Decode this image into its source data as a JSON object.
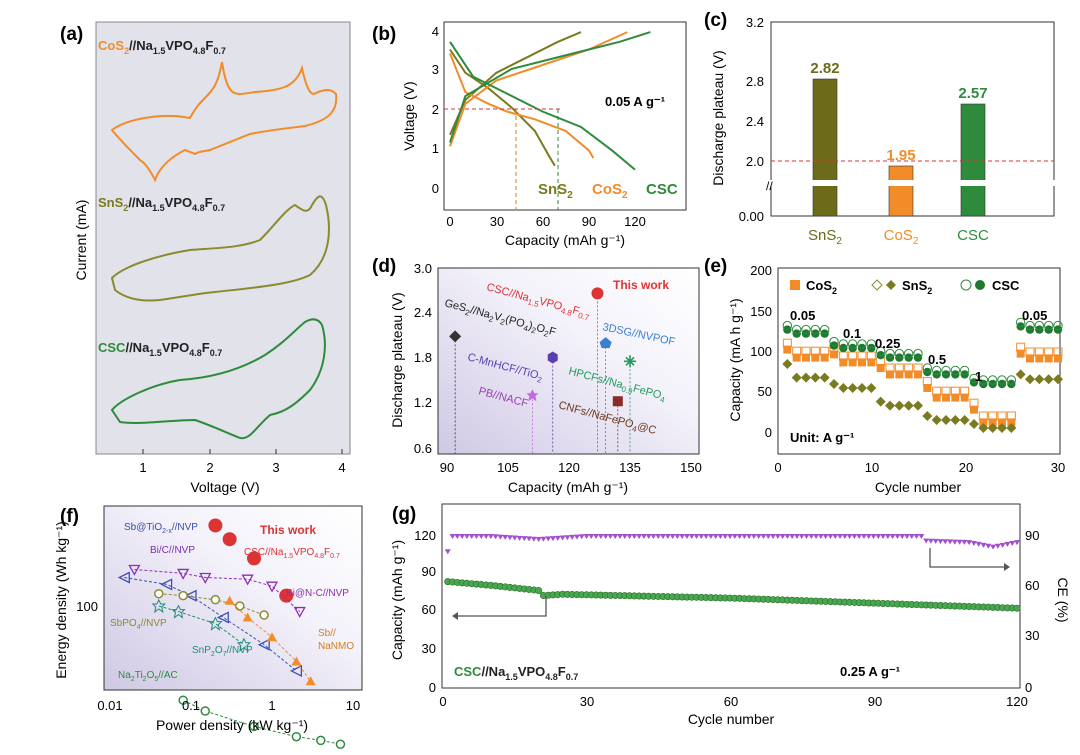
{
  "panels": {
    "a": {
      "label": "(a)",
      "traces": [
        {
          "host": "CoS",
          "host_sub": "2",
          "cathode": "//Na",
          "c1": "1.5",
          "c2": "VPO",
          "c3": "4.8",
          "c4": "F",
          "c5": "0.7",
          "color": "#f28c28"
        },
        {
          "host": "SnS",
          "host_sub": "2",
          "cathode": "//Na",
          "c1": "1.5",
          "c2": "VPO",
          "c3": "4.8",
          "c4": "F",
          "c5": "0.7",
          "color": "#8c8a2e"
        },
        {
          "host": "CSC",
          "host_sub": "",
          "cathode": "//Na",
          "c1": "1.5",
          "c2": "VPO",
          "c3": "4.8",
          "c4": "F",
          "c5": "0.7",
          "color": "#2e8b3c"
        }
      ],
      "xlabel": "Voltage (V)",
      "ylabel": "Current (mA)",
      "xticks": [
        "1",
        "2",
        "3",
        "4"
      ]
    },
    "b": {
      "label": "(b)",
      "xlabel": "Capacity (mAh g⁻¹)",
      "ylabel": "Voltage (V)",
      "xticks": [
        "0",
        "30",
        "60",
        "90",
        "120"
      ],
      "yticks": [
        "0",
        "1",
        "2",
        "3",
        "4"
      ],
      "rate": "0.05 A g⁻¹",
      "series_labels": [
        {
          "t": "SnS",
          "s": "2",
          "color": "#7a7a1e"
        },
        {
          "t": "CoS",
          "s": "2",
          "color": "#f28c28"
        },
        {
          "t": "CSC",
          "s": "",
          "color": "#2e8b3c"
        }
      ]
    },
    "c": {
      "label": "(c)",
      "ylabel": "Discharge plateau (V)",
      "yticks": [
        "0.00",
        "2.0",
        "2.4",
        "2.8",
        "3.2"
      ],
      "bars": [
        {
          "name": "SnS",
          "sub": "2",
          "value": 2.82,
          "vlabel": "2.82",
          "color": "#6b6b1a"
        },
        {
          "name": "CoS",
          "sub": "2",
          "value": 1.95,
          "vlabel": "1.95",
          "color": "#f28c28"
        },
        {
          "name": "CSC",
          "sub": "",
          "value": 2.57,
          "vlabel": "2.57",
          "color": "#2e8b3c"
        }
      ]
    },
    "d": {
      "label": "(d)",
      "xlabel": "Capacity (mAh g⁻¹)",
      "ylabel": "Discharge plateau (V)",
      "xticks": [
        "90",
        "105",
        "120",
        "135",
        "150"
      ],
      "yticks": [
        "0.6",
        "1.2",
        "1.8",
        "2.4",
        "3.0"
      ],
      "this_work": "This work",
      "labels": {
        "csc": "CSC//Na",
        "csc_s1": "1.5",
        "csc_t2": "VPO",
        "csc_s2": "4.8",
        "csc_t3": "F",
        "csc_s3": "0.7",
        "ges": "GeS",
        "ges_s1": "2",
        "ges_t2": "//Na",
        "ges_s2": "2",
        "ges_t3": "V",
        "ges_s3": "2",
        "ges_t4": "(PO",
        "ges_s4": "4",
        "ges_t5": ")",
        "ges_s5": "2",
        "ges_t6": "O",
        "ges_s6": "2",
        "ges_t7": "F",
        "dsg": "3DSG//NVPOF",
        "cmn": "C-MnHCF//TiO",
        "cmn_s": "2",
        "hpc": "HPCFs//Na",
        "hpc_s": "0.9",
        "hpc_t2": "FePO",
        "hpc_s2": "4",
        "pb": "PB//NACF",
        "cnf": "CNFs//NaFePO",
        "cnf_s": "4",
        "cnf_t2": "@C"
      }
    },
    "e": {
      "label": "(e)",
      "xlabel": "Cycle number",
      "ylabel": "Capacity (mA h g⁻¹)",
      "xticks": [
        "0",
        "10",
        "20",
        "30"
      ],
      "yticks": [
        "0",
        "50",
        "100",
        "150",
        "200"
      ],
      "unit": "Unit: A g⁻¹",
      "legend": [
        {
          "t": "CoS",
          "s": "2"
        },
        {
          "t": "SnS",
          "s": "2"
        },
        {
          "t": "CSC",
          "s": ""
        }
      ],
      "rates": [
        "0.05",
        "0.1",
        "0.25",
        "0.5",
        "1",
        "0.05"
      ]
    },
    "f": {
      "label": "(f)",
      "xlabel": "Power density (kW kg⁻¹)",
      "ylabel": "Energy density (Wh kg⁻¹)",
      "xticks": [
        "0.01",
        "0.1",
        "1",
        "10"
      ],
      "ytick": "100",
      "this_work": "This work",
      "labels": {
        "sbti": "Sb@TiO",
        "sbti_s": "2-x",
        "sbti_t2": "//NVP",
        "bic": "Bi/C//NVP",
        "csc": "CSC//Na",
        "csc_s1": "1.5",
        "csc_t2": "VPO",
        "csc_s2": "4.8",
        "csc_t3": "F",
        "csc_s3": "0.7",
        "bin": "Bi@N-C//NVP",
        "sbpo": "SbPO",
        "sbpo_s": "4",
        "sbpo_t2": "//NVP",
        "sbna1": "Sb//",
        "sbna2": "NaNMO",
        "snp": "SnP",
        "snp_s": "2",
        "snp_t2": "O",
        "snp_s2": "7",
        "snp_t3": "//NVP",
        "nti": "Na",
        "nti_s": "2",
        "nti_t2": "Ti",
        "nti_s2": "2",
        "nti_t3": "O",
        "nti_s3": "5",
        "nti_t4": "//AC"
      }
    },
    "g": {
      "label": "(g)",
      "xlabel": "Cycle number",
      "ylabel_left": "Capacity (mAh g⁻¹)",
      "ylabel_right": "CE (%)",
      "xticks": [
        "0",
        "30",
        "60",
        "90",
        "120"
      ],
      "yticks_left": [
        "0",
        "30",
        "60",
        "90",
        "120"
      ],
      "yticks_right": [
        "0",
        "30",
        "60",
        "90"
      ],
      "cell": "CSC",
      "cell_t2": "//Na",
      "cell_s1": "1.5",
      "cell_t3": "VPO",
      "cell_s2": "4.8",
      "cell_t4": "F",
      "cell_s3": "0.7",
      "rate": "0.25 A g⁻¹"
    }
  },
  "chart_data": [
    {
      "type": "line",
      "panel": "b",
      "xlabel": "Capacity (mAh g⁻¹)",
      "ylabel": "Voltage (V)",
      "xlim": [
        -5,
        135
      ],
      "ylim": [
        -0.5,
        4.2
      ],
      "series": [
        {
          "name": "SnS2",
          "discharge": [
            [
              0,
              3.6
            ],
            [
              10,
              3.0
            ],
            [
              25,
              2.6
            ],
            [
              40,
              2.1
            ],
            [
              55,
              1.5
            ],
            [
              65,
              0.8
            ],
            [
              68,
              0.6
            ]
          ],
          "charge": [
            [
              0,
              1.4
            ],
            [
              10,
              2.3
            ],
            [
              30,
              3.0
            ],
            [
              50,
              3.4
            ],
            [
              70,
              3.8
            ],
            [
              85,
              4.05
            ]
          ]
        },
        {
          "name": "CoS2",
          "discharge": [
            [
              0,
              3.5
            ],
            [
              10,
              2.5
            ],
            [
              25,
              2.2
            ],
            [
              37,
              2.0
            ],
            [
              55,
              1.8
            ],
            [
              75,
              1.5
            ],
            [
              90,
              1.0
            ],
            [
              93,
              0.8
            ]
          ],
          "charge": [
            [
              0,
              1.1
            ],
            [
              10,
              2.2
            ],
            [
              30,
              2.8
            ],
            [
              60,
              3.2
            ],
            [
              90,
              3.6
            ],
            [
              115,
              4.05
            ]
          ]
        },
        {
          "name": "CSC",
          "discharge": [
            [
              0,
              3.8
            ],
            [
              15,
              2.9
            ],
            [
              35,
              2.5
            ],
            [
              60,
              2.0
            ],
            [
              85,
              1.6
            ],
            [
              105,
              1.0
            ],
            [
              120,
              0.5
            ]
          ],
          "charge": [
            [
              0,
              1.2
            ],
            [
              10,
              2.4
            ],
            [
              40,
              3.1
            ],
            [
              80,
              3.5
            ],
            [
              110,
              3.8
            ],
            [
              130,
              4.05
            ]
          ]
        }
      ],
      "reference_line": 2.0
    },
    {
      "type": "bar",
      "panel": "c",
      "categories": [
        "SnS2",
        "CoS2",
        "CSC"
      ],
      "values": [
        2.82,
        1.95,
        2.57
      ],
      "ylabel": "Discharge plateau (V)",
      "reference_line": 2.0
    },
    {
      "type": "scatter",
      "panel": "d",
      "xlabel": "Capacity (mAh g⁻¹)",
      "ylabel": "Discharge plateau (V)",
      "xlim": [
        90,
        150
      ],
      "ylim": [
        0.6,
        3.0
      ],
      "points": [
        {
          "name": "CSC//Na1.5VPO4.8F0.7",
          "x": 127,
          "y": 2.65
        },
        {
          "name": "GeS2//Na2V2(PO4)2O2F",
          "x": 92,
          "y": 2.08
        },
        {
          "name": "3DSG//NVPOF",
          "x": 129,
          "y": 1.99
        },
        {
          "name": "C-MnHCF//TiO2",
          "x": 116,
          "y": 1.8
        },
        {
          "name": "HPCFs//Na0.9FePO4",
          "x": 135,
          "y": 1.75
        },
        {
          "name": "PB//NACF",
          "x": 111,
          "y": 1.3
        },
        {
          "name": "CNFs//NaFePO4@C",
          "x": 132,
          "y": 1.22
        }
      ]
    },
    {
      "type": "scatter",
      "panel": "e",
      "xlabel": "Cycle number",
      "ylabel": "Capacity (mA h g⁻¹)",
      "xlim": [
        0,
        30
      ],
      "ylim": [
        -20,
        200
      ],
      "series": [
        {
          "name": "CoS2",
          "levels": [
            93,
            87,
            72,
            43,
            12,
            92
          ],
          "coulombic_first": [
            103,
            97,
            80,
            55,
            28,
            98
          ]
        },
        {
          "name": "SnS2",
          "levels": [
            68,
            55,
            33,
            15,
            5,
            66
          ],
          "coulombic_first": [
            85,
            60,
            38,
            20,
            10,
            72
          ]
        },
        {
          "name": "CSC",
          "levels": [
            123,
            105,
            93,
            72,
            60,
            128
          ],
          "coulombic_first": [
            128,
            108,
            96,
            75,
            62,
            132
          ]
        }
      ],
      "rates": [
        0.05,
        0.1,
        0.25,
        0.5,
        1,
        0.05
      ]
    },
    {
      "type": "scatter",
      "panel": "f",
      "xlabel": "Power density (kW kg⁻¹)",
      "ylabel": "Energy density (Wh kg⁻¹)",
      "log_x": true,
      "log_y": true,
      "series": [
        {
          "name": "CSC//Na1.5VPO4.8F0.7",
          "points": [
            [
              0.2,
              210
            ],
            [
              0.3,
              185
            ],
            [
              0.6,
              155
            ],
            [
              1.5,
              110
            ]
          ]
        },
        {
          "name": "Bi/C//NVP",
          "points": [
            [
              0.02,
              140
            ],
            [
              0.08,
              135
            ],
            [
              0.15,
              130
            ],
            [
              0.5,
              128
            ],
            [
              1.0,
              120
            ],
            [
              2.2,
              95
            ]
          ]
        },
        {
          "name": "Sb@TiO2-x//NVP",
          "points": [
            [
              0.015,
              130
            ],
            [
              0.05,
              122
            ],
            [
              0.1,
              110
            ],
            [
              0.25,
              90
            ],
            [
              0.8,
              70
            ],
            [
              2.0,
              55
            ]
          ]
        },
        {
          "name": "SbPO4//NVP",
          "points": [
            [
              0.04,
              112
            ],
            [
              0.08,
              110
            ],
            [
              0.2,
              106
            ],
            [
              0.4,
              100
            ],
            [
              0.8,
              92
            ]
          ]
        },
        {
          "name": "Sb//NaNMO",
          "points": [
            [
              0.3,
              105
            ],
            [
              0.5,
              90
            ],
            [
              1.0,
              75
            ],
            [
              2.0,
              60
            ],
            [
              3.0,
              50
            ]
          ]
        },
        {
          "name": "SnP2O7//NVP",
          "points": [
            [
              0.04,
              100
            ],
            [
              0.07,
              95
            ],
            [
              0.2,
              85
            ],
            [
              0.45,
              70
            ]
          ]
        },
        {
          "name": "Na2Ti2O5//AC",
          "points": [
            [
              0.08,
              42
            ],
            [
              0.15,
              38
            ],
            [
              0.6,
              33
            ],
            [
              2.0,
              30
            ],
            [
              4.0,
              29
            ],
            [
              7.0,
              28
            ]
          ]
        }
      ]
    },
    {
      "type": "line",
      "panel": "g",
      "xlabel": "Cycle number",
      "ylabel": "Capacity (mAh g⁻¹)",
      "ylabel_right": "CE (%)",
      "xlim": [
        0,
        120
      ],
      "ylim": [
        0,
        130
      ],
      "ylim_right": [
        0,
        105
      ],
      "series": [
        {
          "name": "Capacity",
          "points": [
            [
              1,
              84
            ],
            [
              10,
              81
            ],
            [
              20,
              77
            ],
            [
              21,
              73
            ],
            [
              25,
              74
            ],
            [
              60,
              71
            ],
            [
              90,
              67
            ],
            [
              120,
              63
            ]
          ]
        },
        {
          "name": "CE",
          "points": [
            [
              1,
              90
            ],
            [
              2,
              100
            ],
            [
              10,
              100
            ],
            [
              20,
              98
            ],
            [
              30,
              100
            ],
            [
              100,
              100
            ],
            [
              101,
              97
            ],
            [
              110,
              96
            ],
            [
              115,
              93
            ],
            [
              120,
              96
            ]
          ]
        }
      ]
    }
  ]
}
